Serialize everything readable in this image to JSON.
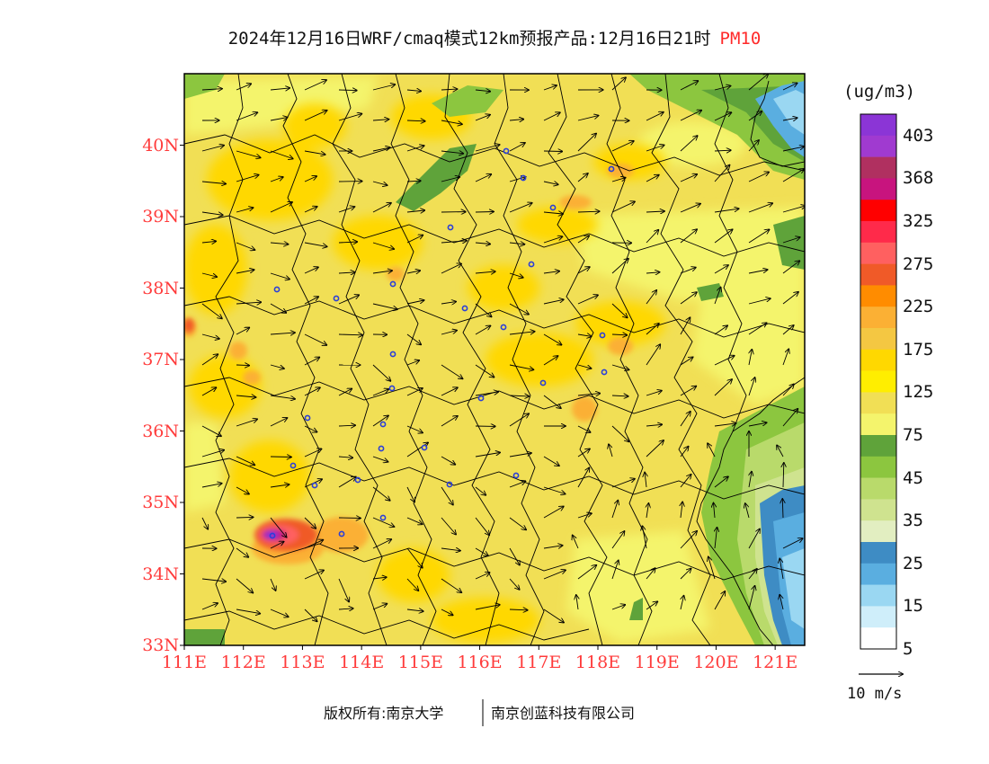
{
  "title": {
    "main": "2024年12月16日WRF/cmaq模式12km预报产品:12月16日21时",
    "variable": "PM10"
  },
  "axes": {
    "lat_labels": [
      "40N",
      "39N",
      "38N",
      "37N",
      "36N",
      "35N",
      "34N",
      "33N"
    ],
    "lon_labels": [
      "111E",
      "112E",
      "113E",
      "114E",
      "115E",
      "116E",
      "117E",
      "118E",
      "119E",
      "120E",
      "121E"
    ],
    "lat_range": [
      33,
      41
    ],
    "lon_range": [
      111,
      121.5
    ],
    "label_color": "#ff3b3b"
  },
  "colorbar": {
    "unit": "(ug/m3)",
    "labels": [
      "403",
      "368",
      "325",
      "275",
      "225",
      "175",
      "125",
      "75",
      "45",
      "35",
      "25",
      "15",
      "5"
    ],
    "colors": [
      "#8b35d6",
      "#a03ad0",
      "#b03060",
      "#c8147e",
      "#ff0000",
      "#ff2a4a",
      "#ff6060",
      "#f05a28",
      "#ff8c00",
      "#fbb034",
      "#f4c742",
      "#ffd800",
      "#ffee00",
      "#f1df55",
      "#f4f46c",
      "#5fa33a",
      "#8cc63f",
      "#b9da6b",
      "#cfe38f",
      "#e2eec1",
      "#3e8cc4",
      "#5aaee0",
      "#9ad7f2",
      "#cfeefa",
      "#ffffff"
    ]
  },
  "wind_reference": {
    "label": "10 m/s"
  },
  "footer": {
    "copyright": "版权所有:南京大学",
    "company": "南京创蓝科技有限公司"
  }
}
